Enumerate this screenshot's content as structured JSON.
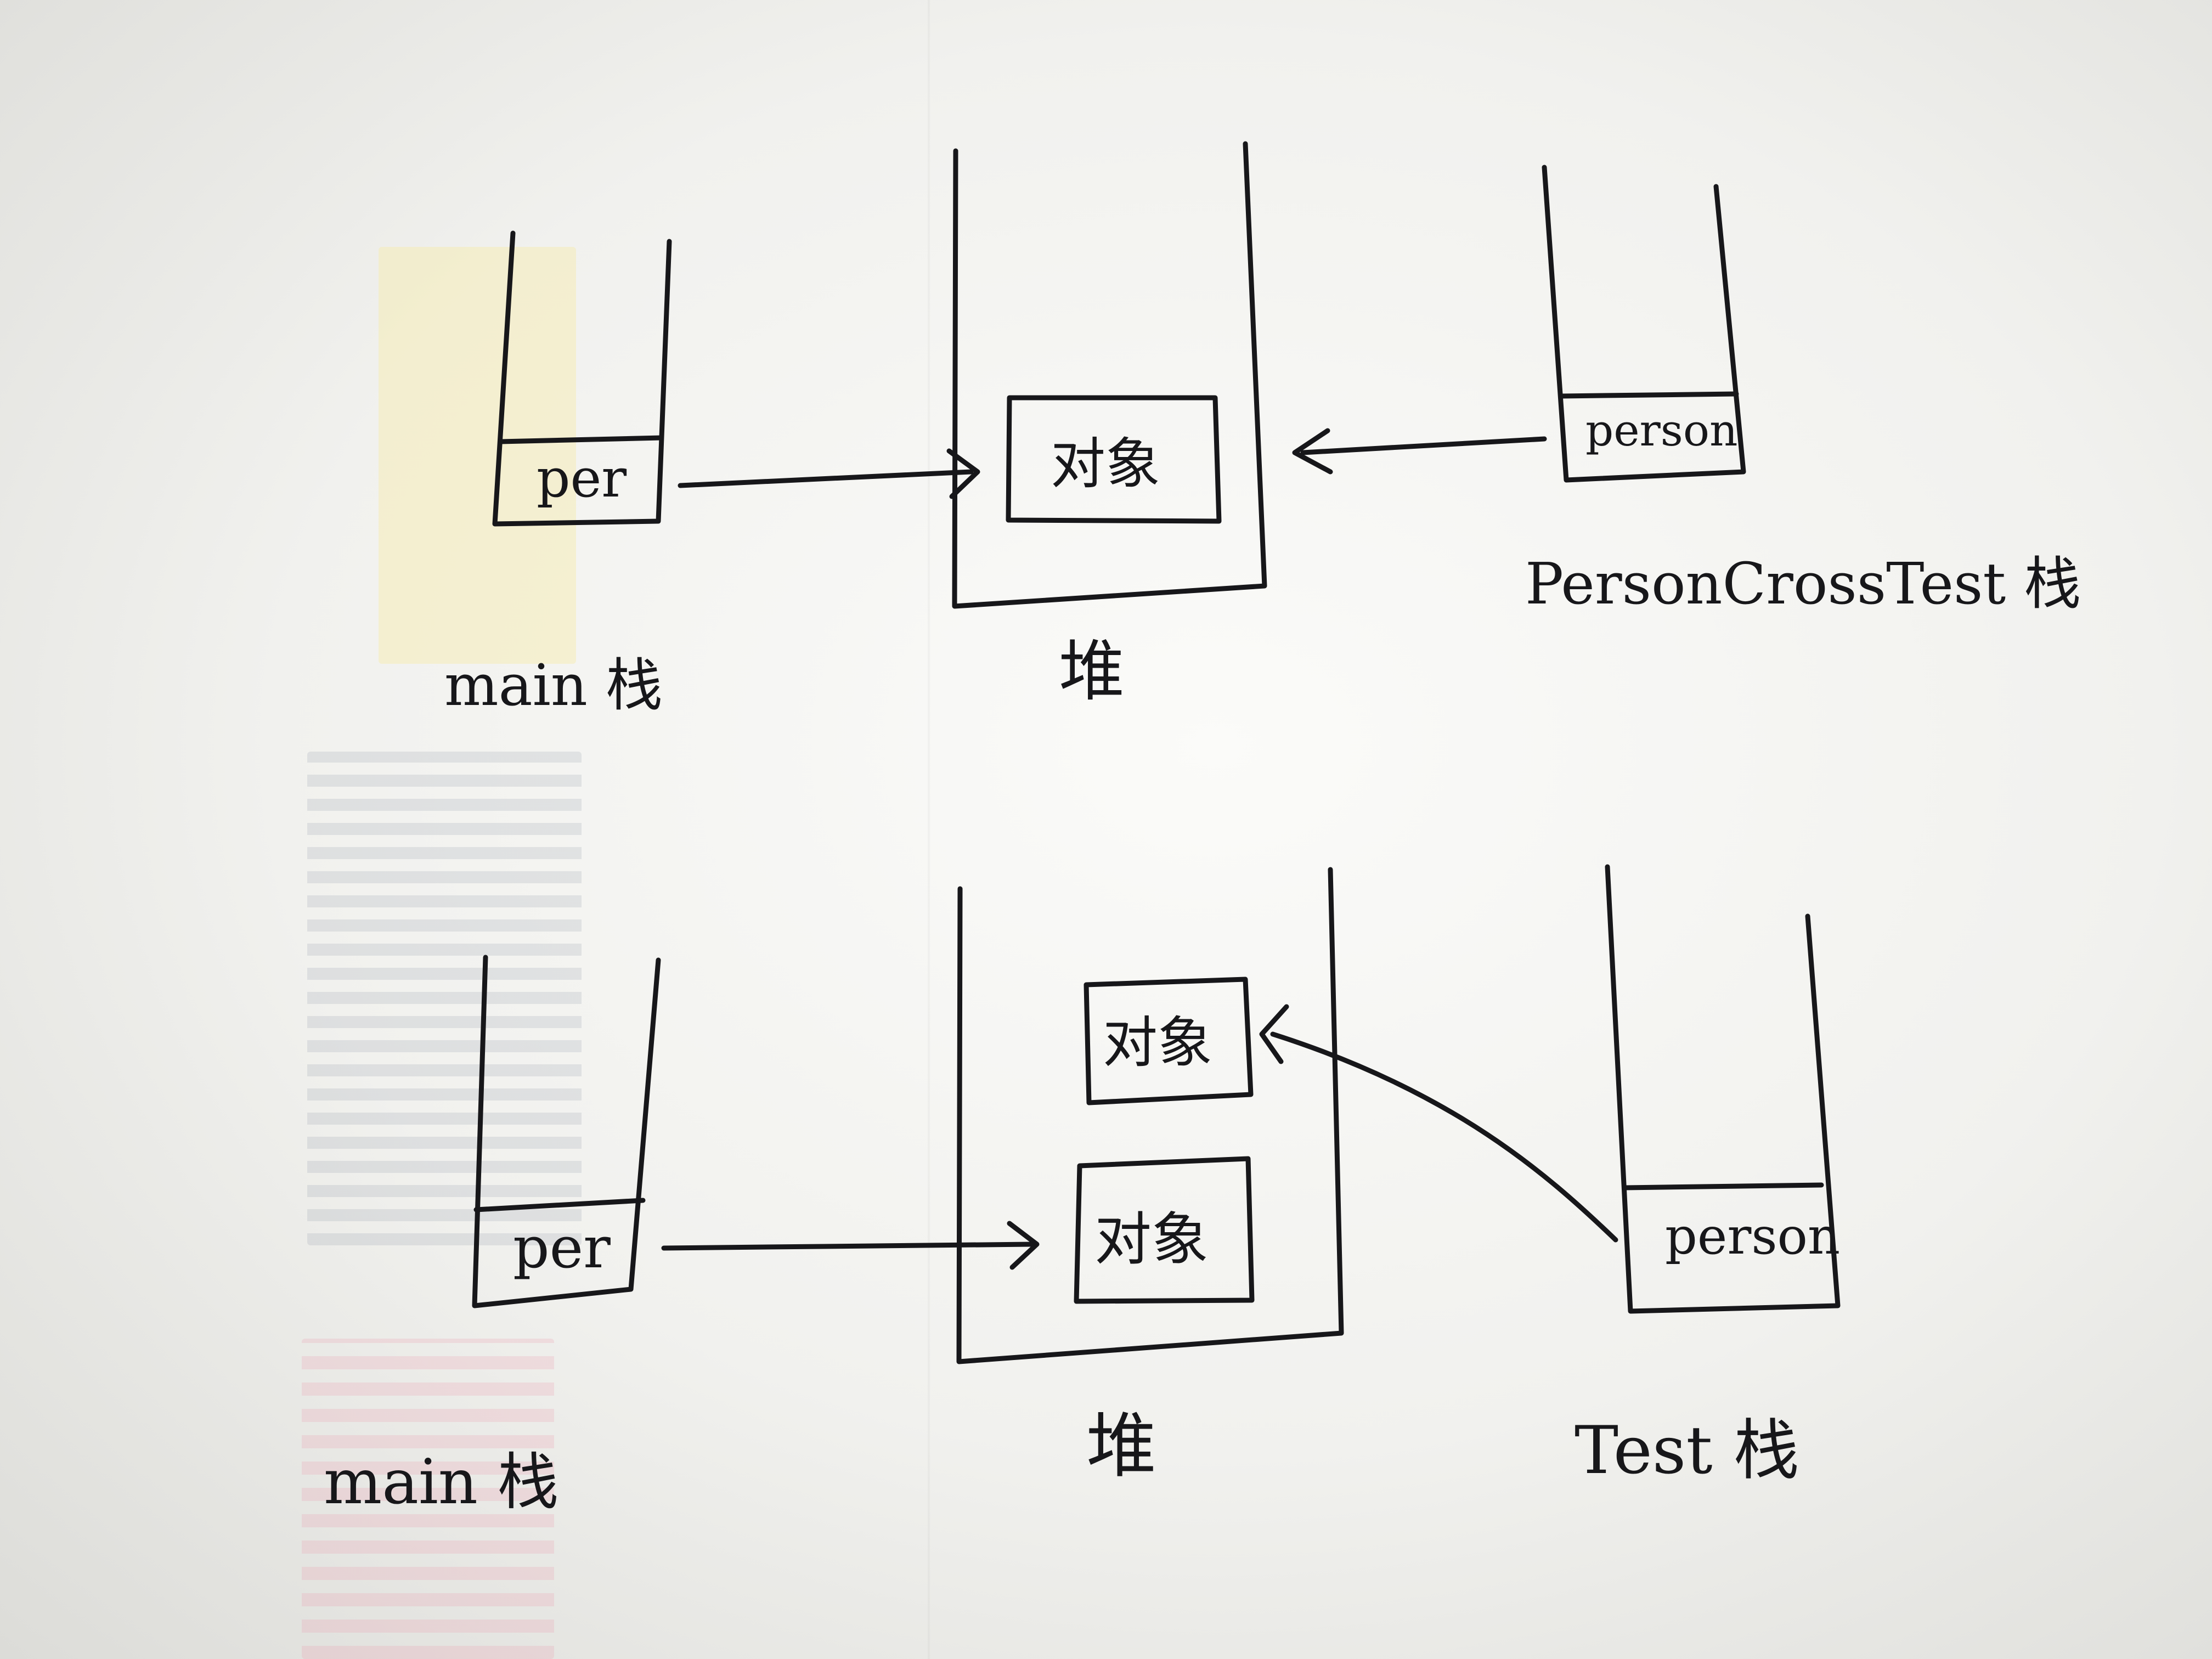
{
  "diagram": {
    "top": {
      "main_stack": {
        "label": "main 栈",
        "slot": "per"
      },
      "heap": {
        "label": "堆",
        "objects": [
          "对象"
        ]
      },
      "other_stack": {
        "label": "PersonCrossTest 栈",
        "slot": "person"
      }
    },
    "bottom": {
      "main_stack": {
        "label": "main 栈",
        "slot": "per"
      },
      "heap": {
        "label": "堆",
        "objects": [
          "对象",
          "对象"
        ]
      },
      "other_stack": {
        "label": "Test 栈",
        "slot": "person"
      }
    }
  },
  "colors": {
    "ink": "#17171a",
    "paper": "#f4f4f1"
  }
}
